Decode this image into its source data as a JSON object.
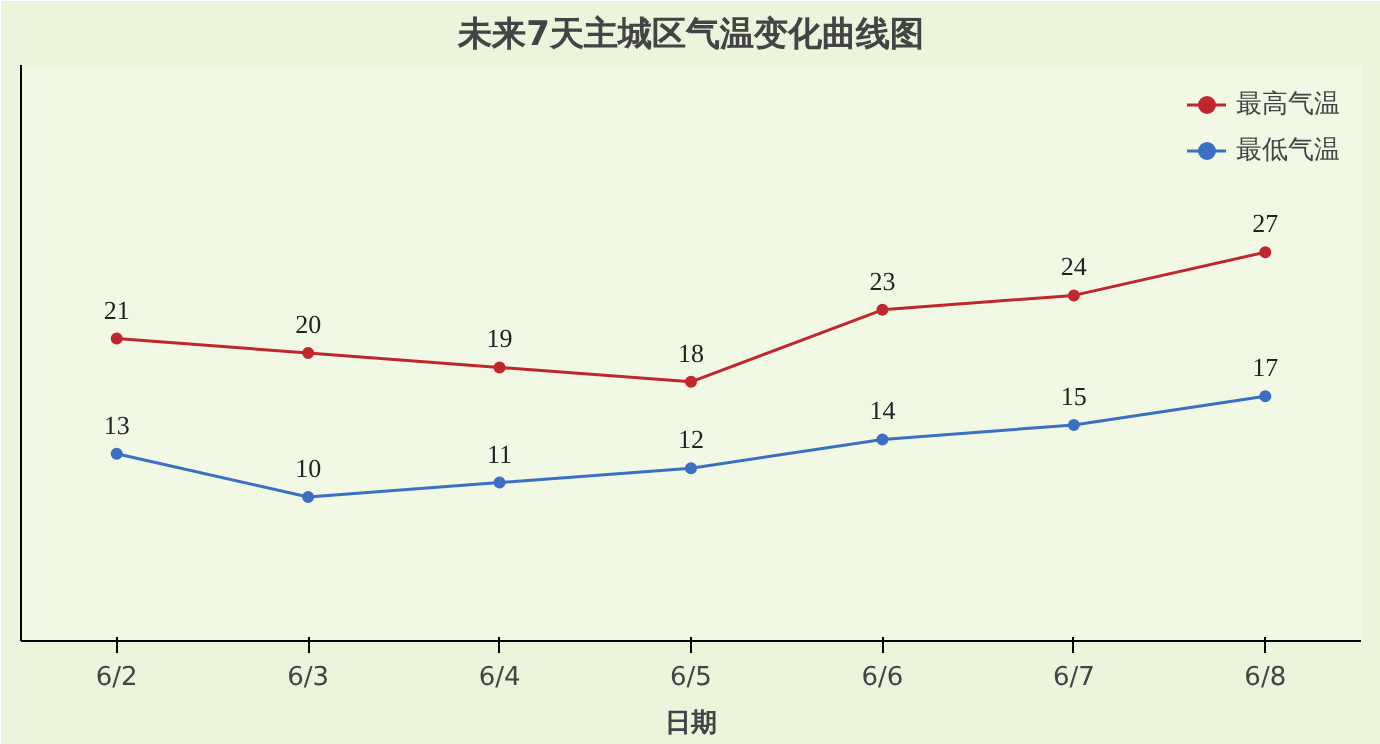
{
  "chart_data": {
    "type": "line",
    "title": "未来7天主城区气温变化曲线图",
    "xlabel": "日期",
    "categories": [
      "6/2",
      "6/3",
      "6/4",
      "6/5",
      "6/6",
      "6/7",
      "6/8"
    ],
    "series": [
      {
        "name": "最高气温",
        "color": "#c0272d",
        "values": [
          21,
          20,
          19,
          18,
          23,
          24,
          27
        ]
      },
      {
        "name": "最低气温",
        "color": "#3a6fc4",
        "values": [
          13,
          10,
          11,
          12,
          14,
          15,
          17
        ]
      }
    ],
    "ylim": [
      0,
      40
    ],
    "tick_labels": "x",
    "data_labels": true,
    "legend": "top right",
    "marker": "circle",
    "line_style": "solid",
    "grid": false
  }
}
